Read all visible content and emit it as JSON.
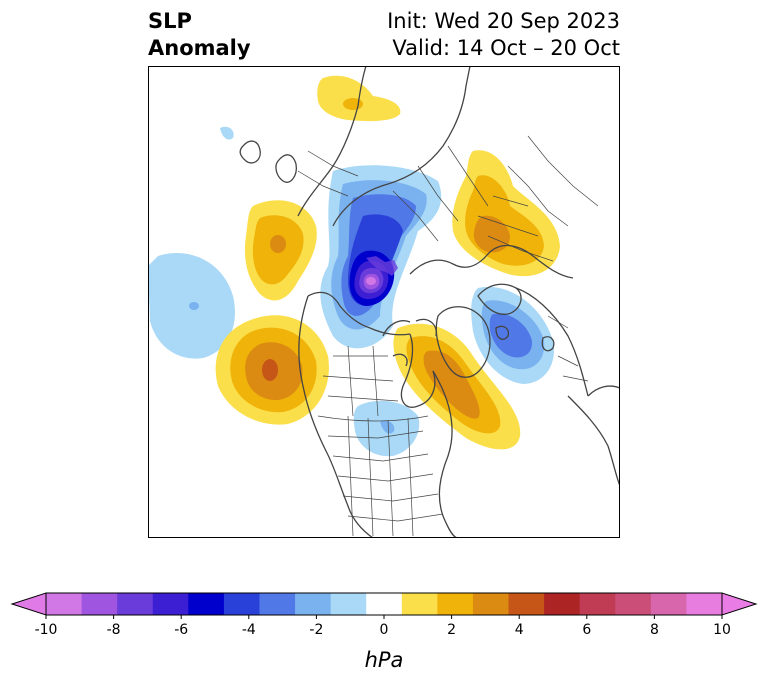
{
  "title": {
    "left_line1": "SLP",
    "left_line2": "Anomaly",
    "right_line1": "Init: Wed 20 Sep 2023",
    "right_line2": "Valid: 14 Oct – 20 Oct"
  },
  "map": {
    "projection": "north-polar-stereographic",
    "features": [
      "coastlines",
      "country borders",
      "US state / Canadian province borders"
    ],
    "anomaly_centers": [
      {
        "region": "Central Arctic / North Pole",
        "sign": "negative",
        "peak_hpa": -10
      },
      {
        "region": "Barents / Kara Sea",
        "sign": "negative",
        "peak_hpa": -5
      },
      {
        "region": "North Pacific / Aleutians",
        "sign": "negative",
        "peak_hpa": -2
      },
      {
        "region": "Northern Plains / Hudson Bay",
        "sign": "negative",
        "peak_hpa": -1
      },
      {
        "region": "Northeast Pacific / Gulf of Alaska",
        "sign": "positive",
        "peak_hpa": 5
      },
      {
        "region": "East Siberia / Okhotsk",
        "sign": "positive",
        "peak_hpa": 3
      },
      {
        "region": "Greenland / North Atlantic",
        "sign": "positive",
        "peak_hpa": 4
      },
      {
        "region": "Western Siberia",
        "sign": "positive",
        "peak_hpa": 3
      },
      {
        "region": "North Africa / Mediterranean",
        "sign": "positive",
        "peak_hpa": 1
      }
    ]
  },
  "colorbar": {
    "label": "hPa",
    "ticks": [
      "-10",
      "-8",
      "-6",
      "-4",
      "-2",
      "0",
      "2",
      "4",
      "6",
      "8",
      "10"
    ],
    "levels": [
      -10,
      -9,
      -8,
      -7,
      -6,
      -5,
      -4,
      -3,
      -2,
      -1,
      1,
      2,
      3,
      4,
      5,
      6,
      7,
      8,
      9,
      10
    ],
    "colors": [
      "#d278e6",
      "#9f55e0",
      "#6a3ddb",
      "#3c1ed3",
      "#0000cd",
      "#2a41d9",
      "#5078e6",
      "#7ab2f0",
      "#a9d9f7",
      "#ffffff",
      "#fbdf4a",
      "#efb30a",
      "#db8a12",
      "#c65618",
      "#ad2424",
      "#c03b54",
      "#cb4e78",
      "#d766ad",
      "#e77ddf"
    ],
    "under_color": "#e07ae6",
    "over_color": "#e97de5"
  }
}
